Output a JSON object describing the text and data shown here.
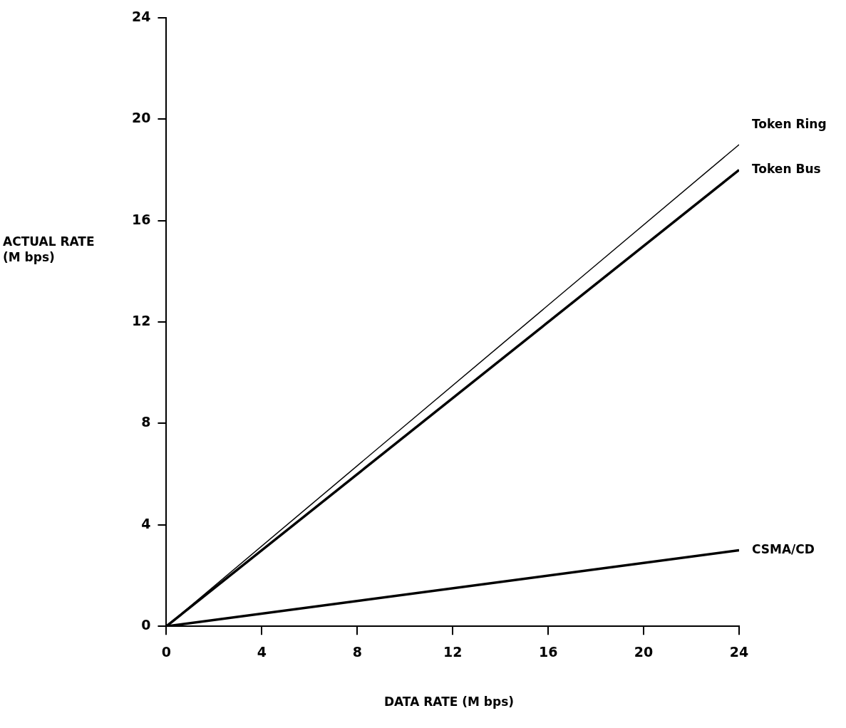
{
  "chart_data": {
    "type": "line",
    "xlabel": "DATA RATE (M bps)",
    "ylabel": "ACTUAL RATE\n(M bps)",
    "x": [
      0,
      24
    ],
    "series": [
      {
        "name": "Token Ring",
        "color": "#000000",
        "values": [
          0,
          19
        ]
      },
      {
        "name": "Token Bus",
        "color": "#000000",
        "values": [
          0,
          18
        ]
      },
      {
        "name": "CSMA/CD",
        "color": "#000000",
        "values": [
          0,
          3
        ]
      }
    ],
    "xlim": [
      0,
      24
    ],
    "xticks": [
      0,
      4,
      8,
      12,
      16,
      20,
      24
    ],
    "ylim": [
      0,
      24
    ],
    "yticks": [
      0,
      4,
      8,
      12,
      16,
      20,
      24
    ],
    "grid": false,
    "legend": false,
    "marker": "none",
    "line_style": "solid"
  }
}
